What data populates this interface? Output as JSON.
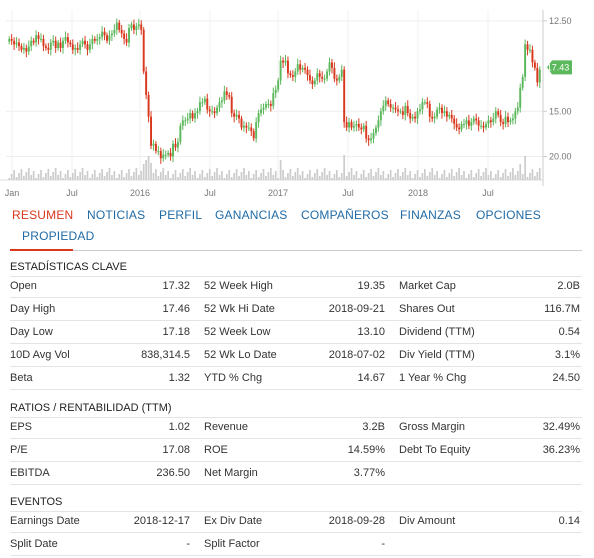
{
  "chart": {
    "y_ticks": [
      "20.00",
      "15.00",
      "12.50"
    ],
    "x_ticks": [
      "Jan",
      "Jul",
      "2016",
      "Jul",
      "2017",
      "Jul",
      "2018",
      "Jul"
    ],
    "last_price": "17.43",
    "last_price_color": "#5cb85c",
    "up_color": "#5cb85c",
    "down_color": "#d9381e",
    "volume_color": "#cccccc"
  },
  "chart_data": {
    "type": "candlestick",
    "close": [
      19.0,
      18.9,
      18.7,
      18.8,
      18.6,
      18.4,
      18.5,
      18.3,
      18.6,
      18.9,
      18.8,
      19.2,
      19.0,
      19.0,
      18.6,
      18.5,
      18.4,
      18.8,
      18.9,
      18.5,
      18.8,
      18.5,
      18.9,
      19.1,
      18.8,
      18.7,
      18.4,
      18.5,
      18.4,
      18.7,
      18.9,
      18.7,
      18.4,
      18.7,
      19.0,
      18.9,
      19.0,
      19.1,
      19.4,
      19.2,
      18.9,
      19.2,
      19.3,
      19.5,
      19.9,
      19.5,
      19.3,
      19.0,
      18.8,
      19.6,
      19.8,
      19.5,
      19.7,
      19.8,
      19.5,
      17.2,
      15.9,
      14.7,
      13.1,
      13.2,
      12.8,
      12.8,
      12.4,
      12.6,
      12.6,
      12.7,
      12.5,
      13.2,
      13.0,
      13.3,
      14.2,
      14.5,
      14.5,
      14.6,
      14.9,
      14.6,
      14.9,
      15.0,
      15.5,
      15.5,
      15.7,
      15.1,
      15.0,
      15.0,
      14.9,
      15.2,
      15.5,
      15.6,
      16.1,
      15.9,
      15.8,
      14.9,
      14.7,
      14.8,
      14.6,
      14.1,
      14.2,
      14.1,
      14.1,
      13.9,
      13.5,
      14.4,
      14.9,
      15.1,
      15.2,
      15.4,
      15.4,
      15.3,
      16.0,
      16.2,
      16.7,
      17.8,
      17.7,
      17.8,
      17.1,
      17.0,
      16.9,
      17.2,
      17.6,
      17.3,
      17.4,
      17.3,
      17.0,
      16.7,
      16.5,
      16.7,
      17.1,
      16.9,
      16.8,
      16.8,
      17.2,
      17.7,
      17.4,
      16.8,
      16.7,
      16.9,
      17.3,
      14.4,
      14.1,
      14.4,
      14.1,
      14.2,
      14.3,
      14.1,
      14.0,
      14.2,
      13.5,
      13.4,
      13.5,
      13.8,
      14.1,
      14.5,
      15.0,
      15.3,
      15.6,
      15.4,
      15.2,
      15.2,
      15.1,
      15.0,
      15.0,
      14.8,
      15.3,
      14.9,
      14.6,
      14.7,
      14.6,
      15.0,
      15.1,
      15.5,
      15.5,
      15.4,
      14.7,
      14.6,
      14.7,
      15.1,
      15.2,
      14.9,
      15.0,
      14.7,
      14.8,
      14.6,
      14.3,
      14.1,
      14.0,
      14.3,
      14.3,
      14.5,
      14.2,
      14.4,
      14.6,
      14.5,
      14.2,
      14.2,
      14.1,
      14.3,
      14.5,
      14.4,
      14.6,
      15.0,
      14.8,
      14.4,
      14.3,
      14.7,
      14.4,
      14.5,
      14.6,
      15.0,
      15.2,
      16.3,
      16.9,
      18.7,
      18.4,
      18.4,
      17.7,
      17.4,
      16.6,
      17.3
    ],
    "y_ticks": [
      12.5,
      15.0,
      20.0
    ],
    "x_ticks": [
      "Jan",
      "Jul",
      "2016",
      "Jul",
      "2017",
      "Jul",
      "2018",
      "Jul"
    ],
    "last": 17.43,
    "ylim": [
      11.2,
      20.6
    ]
  },
  "tabs": [
    {
      "label": "RESUMEN",
      "active": true
    },
    {
      "label": "NOTICIAS",
      "active": false
    },
    {
      "label": "PERFIL",
      "active": false
    },
    {
      "label": "GANANCIAS",
      "active": false
    },
    {
      "label": "COMPAÑEROS",
      "active": false
    },
    {
      "label": "FINANZAS",
      "active": false
    },
    {
      "label": "OPCIONES",
      "active": false
    },
    {
      "label": "PROPIEDAD",
      "active": false
    }
  ],
  "key_stats": {
    "title": "ESTADÍSTICAS CLAVE",
    "rows": [
      [
        [
          "Open",
          "17.32"
        ],
        [
          "52 Week High",
          "19.35"
        ],
        [
          "Market Cap",
          "2.0B"
        ]
      ],
      [
        [
          "Day High",
          "17.46"
        ],
        [
          "52 Wk Hi Date",
          "2018-09-21"
        ],
        [
          "Shares Out",
          "116.7M"
        ]
      ],
      [
        [
          "Day Low",
          "17.18"
        ],
        [
          "52 Week Low",
          "13.10"
        ],
        [
          "Dividend (TTM)",
          "0.54"
        ]
      ],
      [
        [
          "10D Avg Vol",
          "838,314.5"
        ],
        [
          "52 Wk Lo Date",
          "2018-07-02"
        ],
        [
          "Div Yield (TTM)",
          "3.1%"
        ]
      ],
      [
        [
          "Beta",
          "1.32"
        ],
        [
          "YTD % Chg",
          "14.67"
        ],
        [
          "1 Year % Chg",
          "24.50"
        ]
      ]
    ]
  },
  "ratios": {
    "title": "RATIOS / RENTABILIDAD (TTM)",
    "rows": [
      [
        [
          "EPS",
          "1.02"
        ],
        [
          "Revenue",
          "3.2B"
        ],
        [
          "Gross Margin",
          "32.49%"
        ]
      ],
      [
        [
          "P/E",
          "17.08"
        ],
        [
          "ROE",
          "14.59%"
        ],
        [
          "Debt To Equity",
          "36.23%"
        ]
      ],
      [
        [
          "EBITDA",
          "236.50"
        ],
        [
          "Net Margin",
          "3.77%"
        ],
        [
          "",
          ""
        ]
      ]
    ]
  },
  "events": {
    "title": "EVENTOS",
    "rows": [
      [
        [
          "Earnings Date",
          "2018-12-17"
        ],
        [
          "Ex Div Date",
          "2018-09-28"
        ],
        [
          "Div Amount",
          "0.14"
        ]
      ],
      [
        [
          "Split Date",
          "-"
        ],
        [
          "Split Factor",
          "-"
        ],
        [
          "",
          ""
        ]
      ]
    ]
  }
}
